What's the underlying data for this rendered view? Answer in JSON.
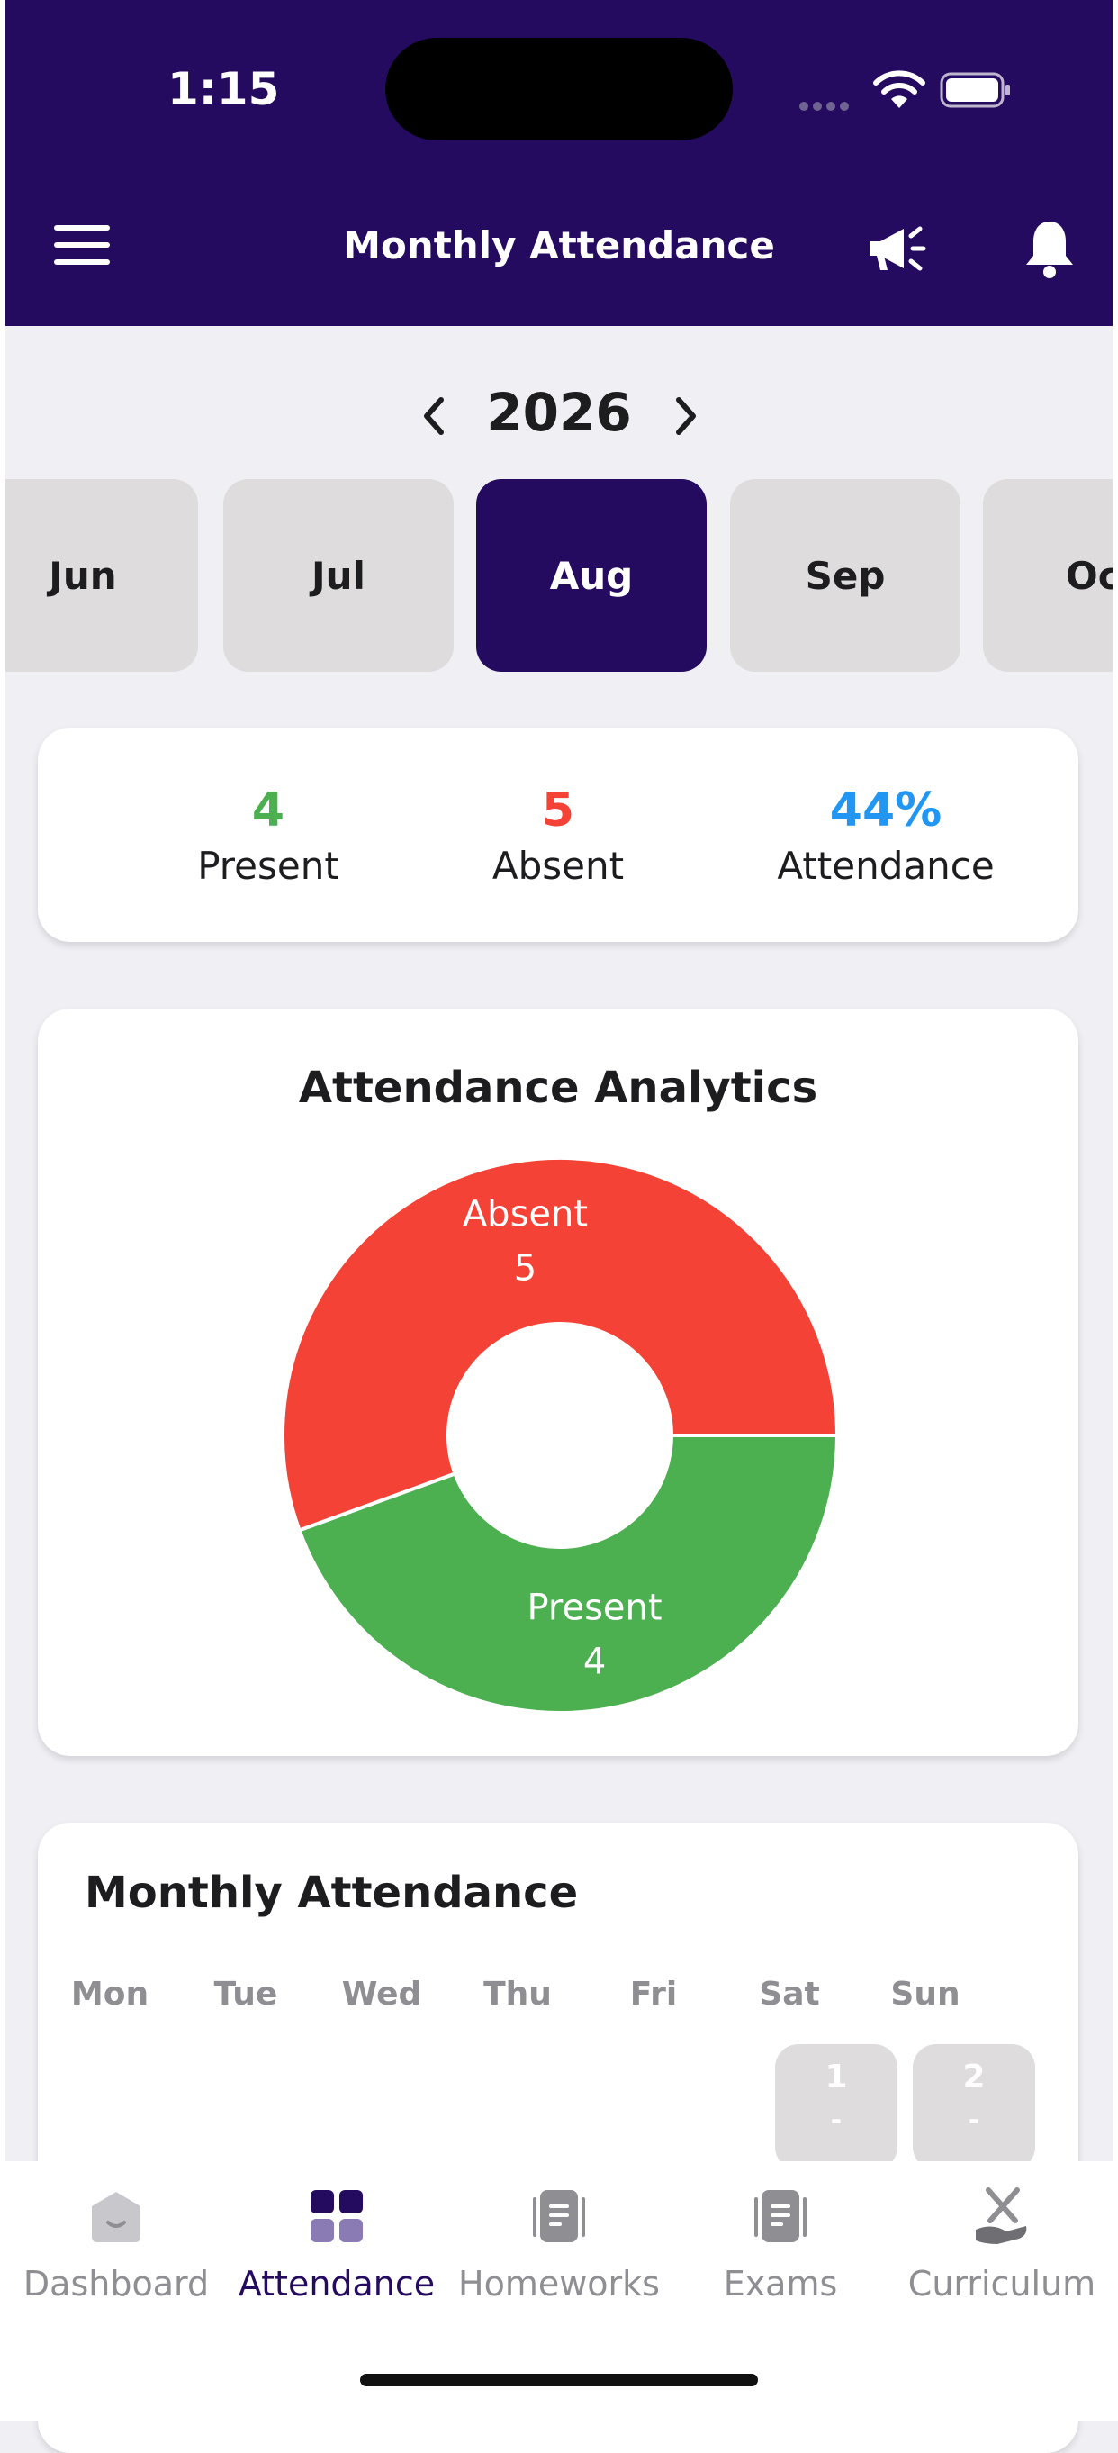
{
  "status_bar": {
    "time": "1:15"
  },
  "header": {
    "title": "Monthly Attendance"
  },
  "year_selector": {
    "year": "2026"
  },
  "months": [
    {
      "label": "Jun",
      "active": false
    },
    {
      "label": "Jul",
      "active": false
    },
    {
      "label": "Aug",
      "active": true
    },
    {
      "label": "Sep",
      "active": false
    },
    {
      "label": "Oc",
      "active": false
    }
  ],
  "summary": {
    "present": {
      "value": "4",
      "label": "Present",
      "color": "#4caf50"
    },
    "absent": {
      "value": "5",
      "label": "Absent",
      "color": "#f44336"
    },
    "attendance": {
      "value": "44%",
      "label": "Attendance",
      "color": "#2196f3"
    }
  },
  "analytics": {
    "title": "Attendance Analytics"
  },
  "chart_data": {
    "type": "pie",
    "title": "Attendance Analytics",
    "categories": [
      "Absent",
      "Present"
    ],
    "values": [
      5,
      4
    ],
    "colors": [
      "#f44336",
      "#4caf50"
    ],
    "donut": true
  },
  "calendar": {
    "title": "Monthly Attendance",
    "weekdays": [
      "Mon",
      "Tue",
      "Wed",
      "Thu",
      "Fri",
      "Sat",
      "Sun"
    ],
    "days": [
      {
        "day": "1",
        "status": "-"
      },
      {
        "day": "2",
        "status": "-"
      }
    ]
  },
  "tabbar": {
    "items": [
      {
        "label": "Dashboard",
        "icon": "dashboard-icon"
      },
      {
        "label": "Attendance",
        "icon": "attendance-grid-icon"
      },
      {
        "label": "Homeworks",
        "icon": "homework-doc-icon"
      },
      {
        "label": "Exams",
        "icon": "exam-doc-icon"
      },
      {
        "label": "Curriculum",
        "icon": "curriculum-tools-icon"
      }
    ],
    "active": "Attendance"
  },
  "colors": {
    "primary": "#250b5f",
    "present": "#4caf50",
    "absent": "#f44336",
    "attendance": "#2196f3",
    "inactive_chip": "#dedcdd"
  }
}
